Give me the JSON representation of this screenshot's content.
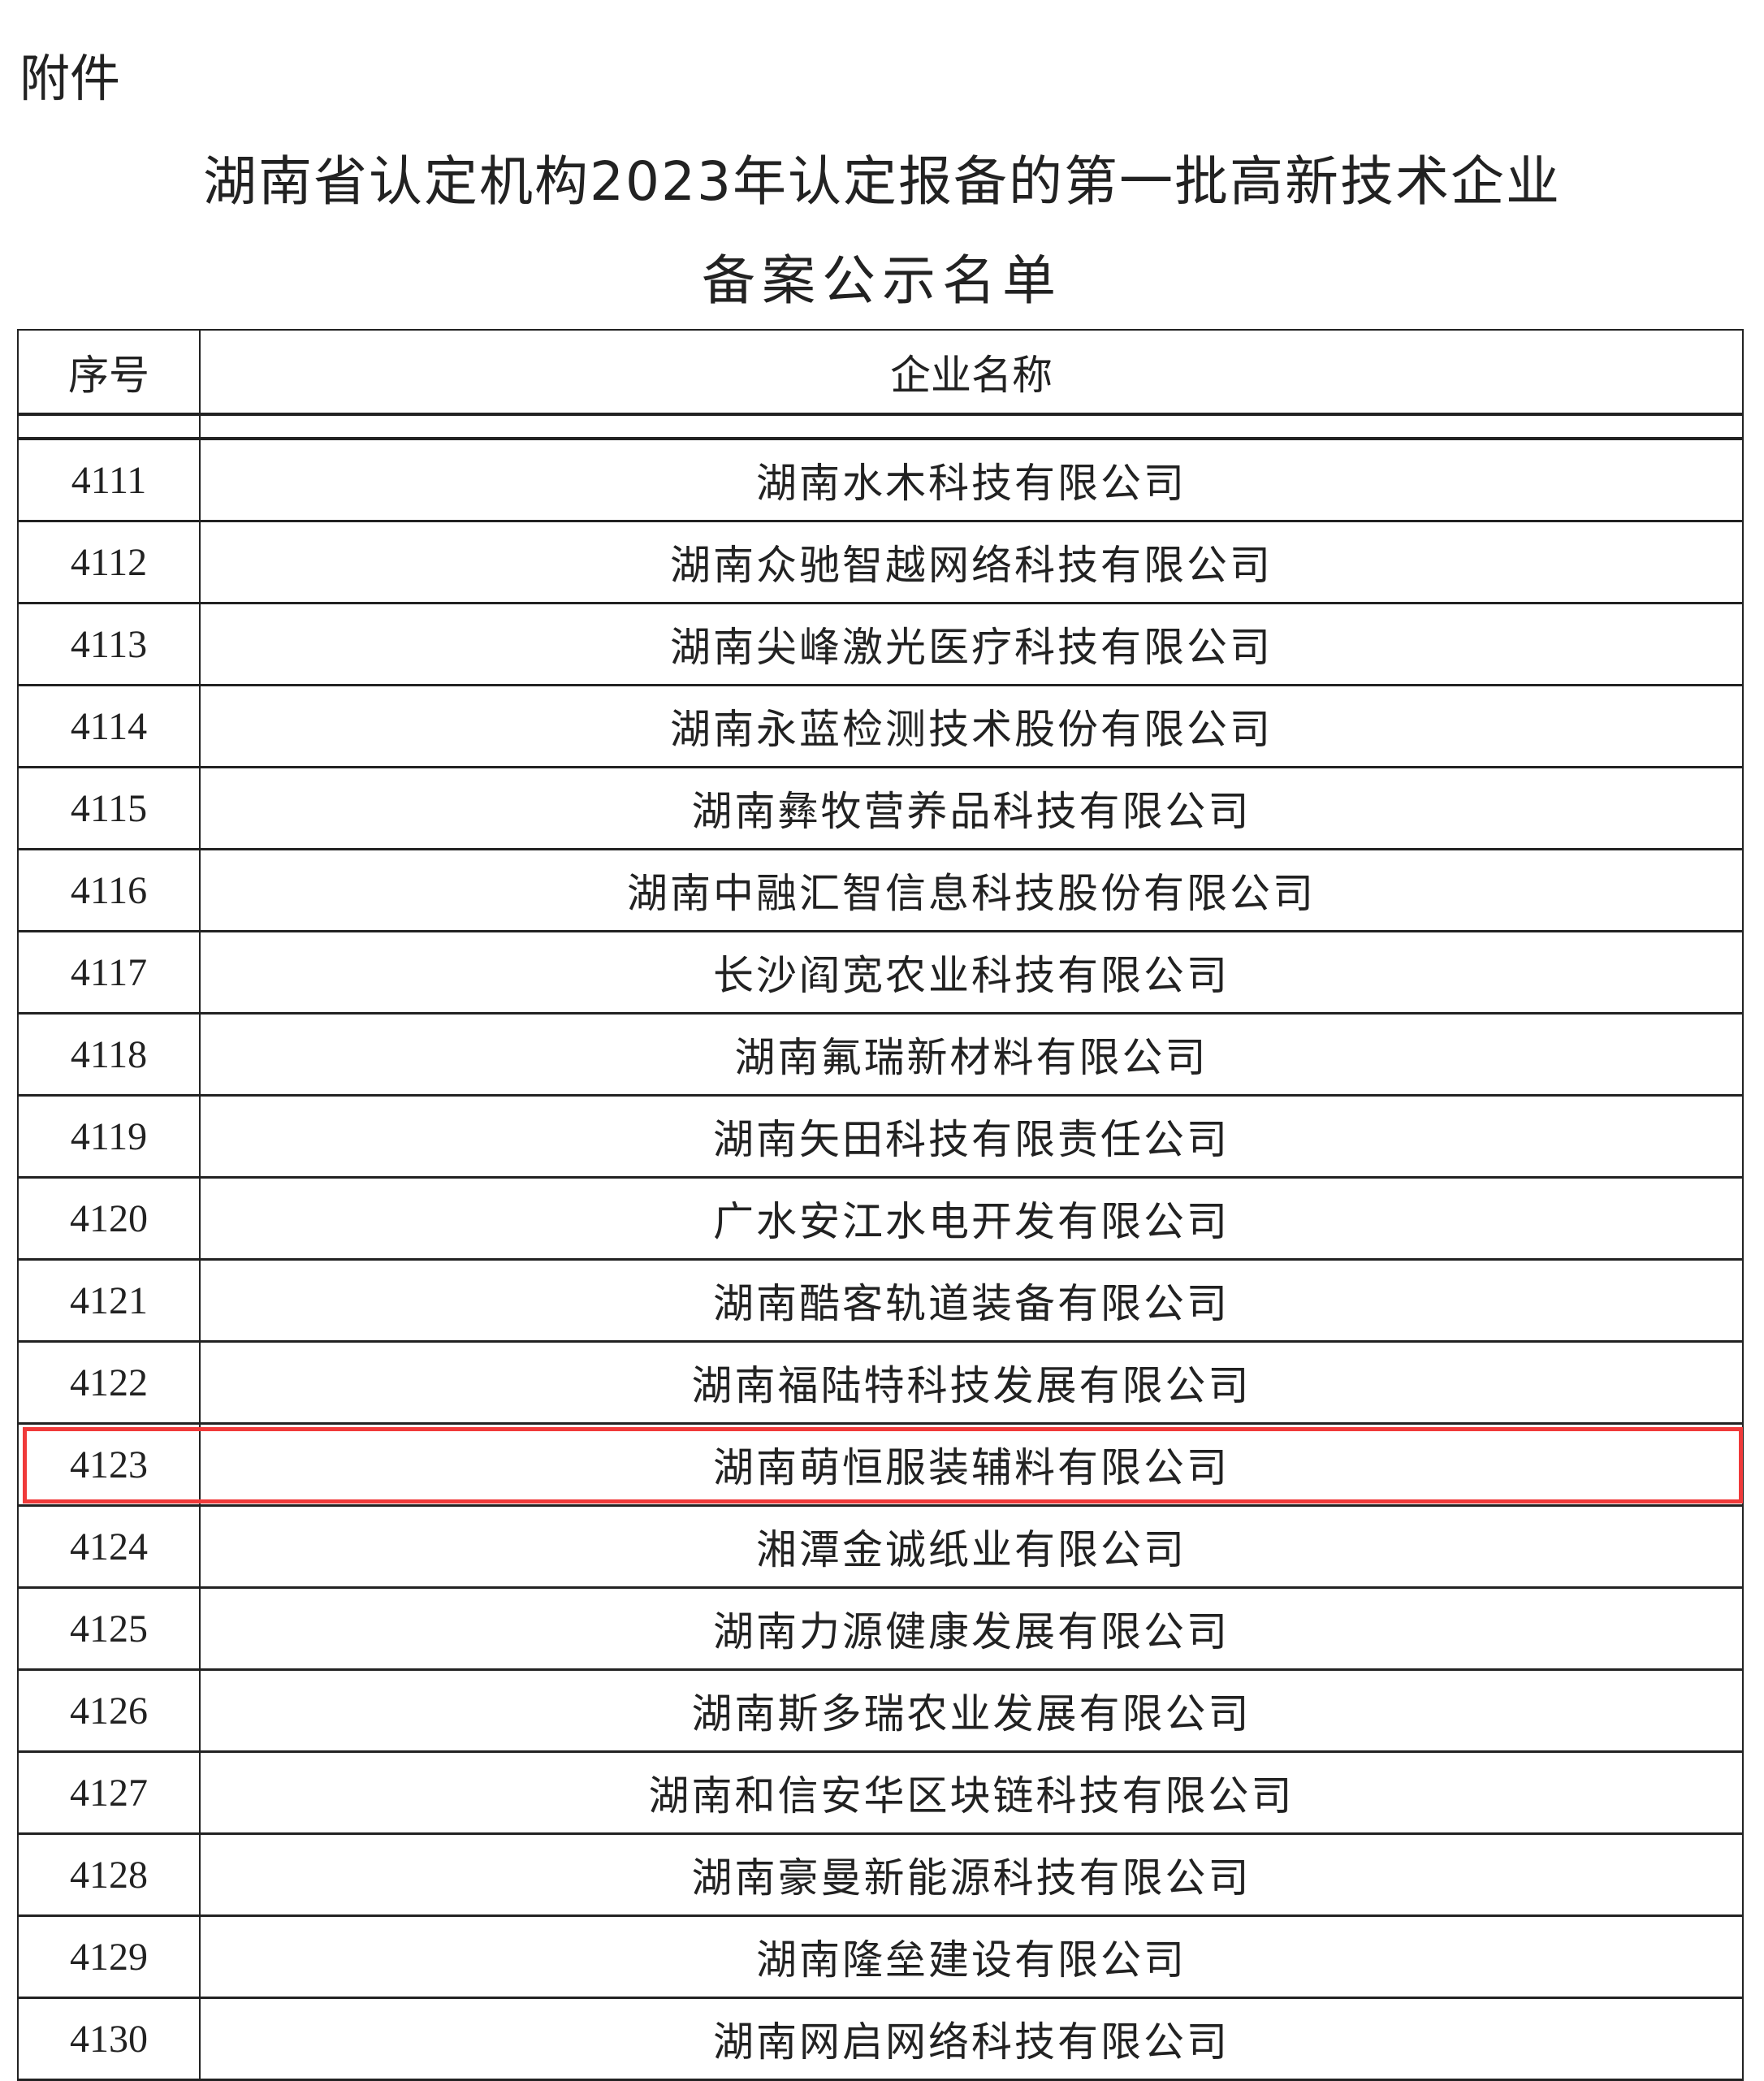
{
  "attachment_label": "附件",
  "title_line1": "湖南省认定机构2023年认定报备的第一批高新技术企业",
  "title_line2": "备案公示名单",
  "highlight_color": "#f03a3a",
  "table": {
    "headers": [
      "序号",
      "企业名称"
    ],
    "rows": [
      {
        "no": "4111",
        "name": "湖南水木科技有限公司"
      },
      {
        "no": "4112",
        "name": "湖南众驰智越网络科技有限公司"
      },
      {
        "no": "4113",
        "name": "湖南尖峰激光医疗科技有限公司"
      },
      {
        "no": "4114",
        "name": "湖南永蓝检测技术股份有限公司"
      },
      {
        "no": "4115",
        "name": "湖南彝牧营养品科技有限公司"
      },
      {
        "no": "4116",
        "name": "湖南中融汇智信息科技股份有限公司"
      },
      {
        "no": "4117",
        "name": "长沙阎宽农业科技有限公司"
      },
      {
        "no": "4118",
        "name": "湖南氟瑞新材料有限公司"
      },
      {
        "no": "4119",
        "name": "湖南矢田科技有限责任公司"
      },
      {
        "no": "4120",
        "name": "广水安江水电开发有限公司"
      },
      {
        "no": "4121",
        "name": "湖南酷客轨道装备有限公司"
      },
      {
        "no": "4122",
        "name": "湖南福陆特科技发展有限公司"
      },
      {
        "no": "4123",
        "name": "湖南萌恒服装辅料有限公司",
        "highlighted": true
      },
      {
        "no": "4124",
        "name": "湘潭金诚纸业有限公司"
      },
      {
        "no": "4125",
        "name": "湖南力源健康发展有限公司"
      },
      {
        "no": "4126",
        "name": "湖南斯多瑞农业发展有限公司"
      },
      {
        "no": "4127",
        "name": "湖南和信安华区块链科技有限公司"
      },
      {
        "no": "4128",
        "name": "湖南豪曼新能源科技有限公司"
      },
      {
        "no": "4129",
        "name": "湖南隆垒建设有限公司"
      },
      {
        "no": "4130",
        "name": "湖南网启网络科技有限公司"
      }
    ]
  }
}
